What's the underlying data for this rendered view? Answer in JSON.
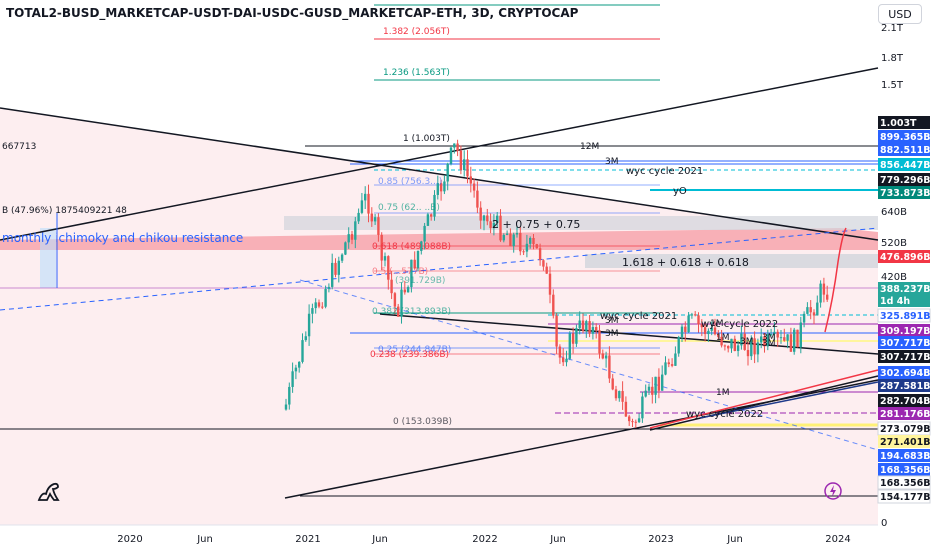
{
  "header": {
    "title": "TOTAL2-BUSD_MARKETCAP-USDT-DAI-USDC-GUSD_MARKETCAP-ETH, 3D, CRYPTOCAP",
    "currency_button": "USD"
  },
  "colors": {
    "candle_up": "#26a69a",
    "candle_down": "#ef5350",
    "fib_red": "#f23645",
    "fib_green": "#089981",
    "fib_blue": "#2962ff",
    "cyan": "#00bcd4",
    "resistance_band": "#f7a8b0",
    "gray_zone": "#d1d4dc",
    "purple": "#9c27b0",
    "background_shade": "#fdeef0"
  },
  "left_labels": {
    "value1": "667713",
    "value2": "B (47.96%) 1875409221 48",
    "resistance_note": "monthly ichimoky and chikou resistance"
  },
  "fib_labels": [
    "1.382 (2.056T)",
    "1.236 (1.563T)",
    "1 (1.003T)",
    "0.85 (756.3...)",
    "0.75 (62.. ..B)",
    "0.618 (489.088B)",
    "0.5 (...577B)",
    "0.382 (313.893B)",
    "0.25 (244.847B)",
    "0.238 (239.386B)",
    "0 (153.039B)",
    "(391.729B)"
  ],
  "annotations": {
    "twelve_month": "12M",
    "three_month_a": "3M",
    "three_month_b": "3M",
    "three_month_c": "3M",
    "one_month_a": "1M",
    "one_month_b": "1M",
    "one_month_c": "1M",
    "three_month_d": "3M",
    "three_month_e": "3M",
    "three_month_f": "3M",
    "wyc_cycle_top": "wyc cycle 2021",
    "wyc_cycle_mid": "wyc cycle 2021",
    "wyc_cycle_2022a": "wyc cycle 2022",
    "wyc_cycle_2022b": "wyc cycle 2022",
    "yO": "yO",
    "formula1": "2 + 0.75 + 0.75",
    "formula2": "1.618 + 0.618 + 0.618"
  },
  "chart_data": {
    "type": "candlestick",
    "title": "TOTAL2-BUSD_MARKETCAP-USDT-DAI-USDC-GUSD_MARKETCAP-ETH, 3D, CRYPTOCAP",
    "x_ticks": [
      "2020",
      "Jun",
      "2021",
      "Jun",
      "2022",
      "Jun",
      "2023",
      "Jun",
      "2024"
    ],
    "y_axis_scale": "log",
    "y_ticks": [
      "2.1T",
      "1.8T",
      "1.5T",
      "640B",
      "520B",
      "420B",
      "0"
    ],
    "price_labels": [
      {
        "text": "1.003T",
        "bg": "#131722",
        "fg": "#ffffff"
      },
      {
        "text": "899.365B",
        "bg": "#2962ff",
        "fg": "#ffffff"
      },
      {
        "text": "882.511B",
        "bg": "#2962ff",
        "fg": "#ffffff"
      },
      {
        "text": "856.447B",
        "bg": "#00bcd4",
        "fg": "#ffffff"
      },
      {
        "text": "779.296B",
        "bg": "#131722",
        "fg": "#ffffff"
      },
      {
        "text": "733.873B",
        "bg": "#00897b",
        "fg": "#ffffff"
      },
      {
        "text": "476.896B",
        "bg": "#f23645",
        "fg": "#ffffff"
      },
      {
        "text": "388.237B",
        "bg": "#26a69a",
        "fg": "#ffffff"
      },
      {
        "text": "1d 4h",
        "bg": "#26a69a",
        "fg": "#ffffff"
      },
      {
        "text": "325.891B",
        "bg": "#ffffff",
        "fg": "#2962ff"
      },
      {
        "text": "309.197B",
        "bg": "#9c27b0",
        "fg": "#ffffff"
      },
      {
        "text": "307.717B",
        "bg": "#2962ff",
        "fg": "#ffffff"
      },
      {
        "text": "307.717B",
        "bg": "#131722",
        "fg": "#ffffff"
      },
      {
        "text": "302.694B",
        "bg": "#2962ff",
        "fg": "#ffffff"
      },
      {
        "text": "287.581B",
        "bg": "#1e3a8a",
        "fg": "#ffffff"
      },
      {
        "text": "282.704B",
        "bg": "#131722",
        "fg": "#ffffff"
      },
      {
        "text": "281.176B",
        "bg": "#9c27b0",
        "fg": "#ffffff"
      },
      {
        "text": "273.079B",
        "bg": "#ffffff",
        "fg": "#131722"
      },
      {
        "text": "271.401B",
        "bg": "#fff59d",
        "fg": "#131722"
      },
      {
        "text": "194.683B",
        "bg": "#2962ff",
        "fg": "#ffffff"
      },
      {
        "text": "168.356B",
        "bg": "#2962ff",
        "fg": "#ffffff"
      },
      {
        "text": "168.356B",
        "bg": "#ffffff",
        "fg": "#131722"
      },
      {
        "text": "154.177B",
        "bg": "#ffffff",
        "fg": "#131722"
      }
    ],
    "series": [
      {
        "name": "",
        "approx_values": [
          {
            "date": "2020-11",
            "value": 150
          },
          {
            "date": "2021-01",
            "value": 300
          },
          {
            "date": "2021-05",
            "value": 720
          },
          {
            "date": "2021-07",
            "value": 330
          },
          {
            "date": "2021-11",
            "value": 1003
          },
          {
            "date": "2022-01",
            "value": 620
          },
          {
            "date": "2022-05",
            "value": 480
          },
          {
            "date": "2022-06",
            "value": 240
          },
          {
            "date": "2022-08",
            "value": 320
          },
          {
            "date": "2022-11",
            "value": 153
          },
          {
            "date": "2023-03",
            "value": 310
          },
          {
            "date": "2023-06",
            "value": 265
          },
          {
            "date": "2023-10",
            "value": 270
          },
          {
            "date": "2023-12",
            "value": 388
          }
        ]
      }
    ]
  }
}
